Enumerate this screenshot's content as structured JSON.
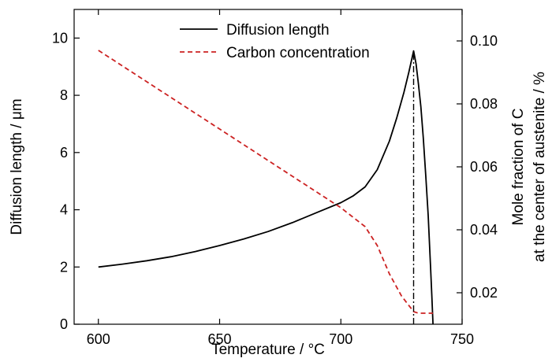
{
  "chart_data": {
    "type": "line",
    "title": "",
    "xlabel": "Temperature / °C",
    "ylabel_left": "Diffusion length / μm",
    "ylabel_right_line1": "Mole fraction of C",
    "ylabel_right_line2": "at the center of austenite / %",
    "xlim": [
      590,
      750
    ],
    "ylim_left": [
      0,
      11
    ],
    "ylim_right": [
      0.01,
      0.11
    ],
    "x_ticks": [
      600,
      650,
      700,
      750
    ],
    "y_left_ticks": [
      0,
      2,
      4,
      6,
      8,
      10
    ],
    "y_right_ticks": [
      0.02,
      0.04,
      0.06,
      0.08,
      0.1
    ],
    "x_tick_labels": [
      "600",
      "650",
      "700",
      "750"
    ],
    "y_left_tick_labels": [
      "0",
      "2",
      "4",
      "6",
      "8",
      "10"
    ],
    "y_right_tick_labels": [
      "0.02",
      "0.04",
      "0.06",
      "0.08",
      "0.10"
    ],
    "legend_position": "top-center",
    "series": [
      {
        "name": "Diffusion length",
        "axis": "left",
        "color": "#000000",
        "style": "solid",
        "x": [
          600,
          610,
          620,
          630,
          640,
          650,
          660,
          670,
          680,
          690,
          700,
          705,
          710,
          715,
          720,
          723,
          726,
          728,
          730,
          731,
          732,
          733,
          734,
          735,
          736,
          737,
          737.5,
          738
        ],
        "y": [
          2.0,
          2.1,
          2.22,
          2.36,
          2.54,
          2.75,
          2.98,
          3.24,
          3.55,
          3.9,
          4.25,
          4.48,
          4.8,
          5.4,
          6.4,
          7.2,
          8.1,
          8.8,
          9.55,
          9.1,
          8.4,
          7.6,
          6.5,
          5.2,
          3.8,
          2.0,
          1.0,
          0.0
        ]
      },
      {
        "name": "Carbon concentration",
        "axis": "right",
        "color": "#cc2222",
        "style": "dashed",
        "x": [
          600,
          620,
          640,
          660,
          680,
          700,
          710,
          715,
          720,
          725,
          730,
          732,
          735,
          738
        ],
        "y": [
          0.097,
          0.087,
          0.077,
          0.067,
          0.057,
          0.047,
          0.041,
          0.035,
          0.026,
          0.019,
          0.014,
          0.0135,
          0.0135,
          0.0135
        ]
      }
    ],
    "annotations": [
      {
        "type": "vertical-line",
        "x": 730,
        "y_from": 0,
        "y_to": 9.55,
        "style": "dash-dot",
        "color": "#000000"
      }
    ]
  }
}
